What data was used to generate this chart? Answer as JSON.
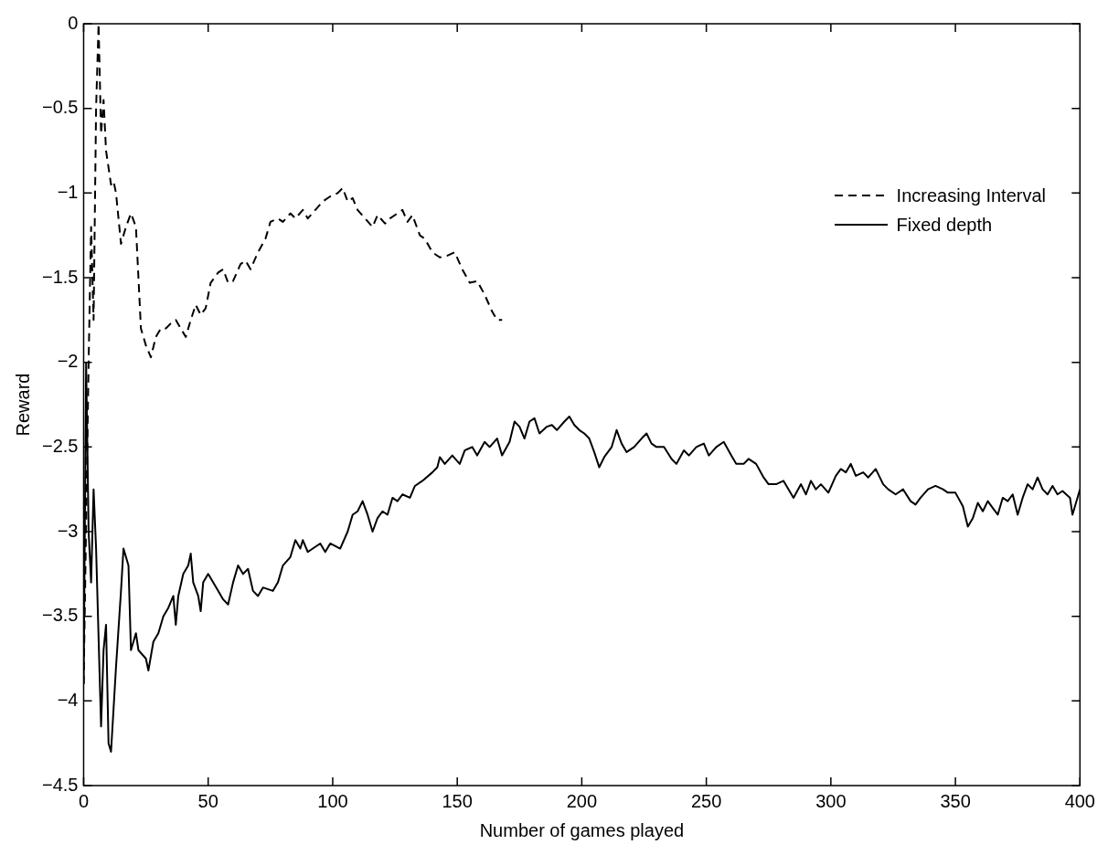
{
  "chart_data": {
    "type": "line",
    "xlabel": "Number of games played",
    "ylabel": "Reward",
    "xlim": [
      0,
      400
    ],
    "xticks": [
      0,
      50,
      100,
      150,
      200,
      250,
      300,
      350,
      400
    ],
    "ylim": [
      -4.5,
      0
    ],
    "yticks": [
      -4.5,
      -4,
      -3.5,
      -3,
      -2.5,
      -2,
      -1.5,
      -1,
      -0.5,
      0
    ],
    "grid": false,
    "legend": "top right",
    "marker": "none",
    "series": [
      {
        "name": "Increasing Interval",
        "color": "#000000",
        "line_style": "dashed",
        "x": [
          0,
          2,
          3,
          4,
          5,
          6,
          7,
          8,
          9,
          11,
          12,
          13,
          15,
          17,
          19,
          21,
          23,
          25,
          27,
          29,
          31,
          33,
          35,
          37,
          39,
          41,
          43,
          45,
          47,
          49,
          51,
          54,
          56,
          58,
          60,
          63,
          65,
          67,
          70,
          73,
          75,
          78,
          80,
          83,
          85,
          88,
          90,
          93,
          96,
          99,
          102,
          104,
          106,
          108,
          110,
          113,
          116,
          118,
          121,
          123,
          126,
          128,
          130,
          132,
          135,
          137,
          140,
          143,
          146,
          149,
          152,
          155,
          158,
          161,
          164,
          166,
          168
        ],
        "values": [
          -3.9,
          -2,
          -1.2,
          -1.75,
          -0.5,
          0,
          -0.65,
          -0.45,
          -0.75,
          -0.95,
          -0.93,
          -1,
          -1.3,
          -1.2,
          -1.12,
          -1.2,
          -1.8,
          -1.9,
          -1.97,
          -1.85,
          -1.8,
          -1.8,
          -1.77,
          -1.75,
          -1.8,
          -1.85,
          -1.75,
          -1.66,
          -1.72,
          -1.68,
          -1.53,
          -1.47,
          -1.45,
          -1.53,
          -1.52,
          -1.42,
          -1.4,
          -1.45,
          -1.35,
          -1.27,
          -1.17,
          -1.15,
          -1.17,
          -1.12,
          -1.15,
          -1.1,
          -1.15,
          -1.1,
          -1.05,
          -1.02,
          -1,
          -0.97,
          -1.05,
          -1.03,
          -1.1,
          -1.15,
          -1.2,
          -1.13,
          -1.18,
          -1.15,
          -1.12,
          -1.1,
          -1.17,
          -1.13,
          -1.25,
          -1.27,
          -1.35,
          -1.38,
          -1.37,
          -1.35,
          -1.45,
          -1.53,
          -1.52,
          -1.6,
          -1.7,
          -1.75,
          -1.75
        ]
      },
      {
        "name": "Fixed depth",
        "color": "#000000",
        "line_style": "solid",
        "x": [
          0,
          1,
          2,
          3,
          4,
          5,
          7,
          8,
          9,
          10,
          11,
          13,
          15,
          16,
          18,
          19,
          21,
          22,
          25,
          26,
          28,
          30,
          32,
          34,
          36,
          37,
          38,
          40,
          42,
          43,
          44,
          46,
          47,
          48,
          50,
          52,
          54,
          56,
          58,
          60,
          62,
          64,
          66,
          68,
          70,
          72,
          76,
          78,
          80,
          83,
          85,
          87,
          88,
          90,
          92,
          95,
          97,
          99,
          103,
          106,
          108,
          110,
          112,
          114,
          116,
          118,
          120,
          122,
          124,
          126,
          128,
          131,
          133,
          136,
          140,
          142,
          143,
          145,
          148,
          151,
          153,
          156,
          158,
          161,
          163,
          166,
          168,
          171,
          173,
          175,
          177,
          179,
          181,
          183,
          186,
          188,
          190,
          193,
          195,
          197,
          199,
          201,
          203,
          205,
          207,
          209,
          212,
          214,
          216,
          218,
          221,
          224,
          226,
          228,
          230,
          233,
          236,
          238,
          241,
          243,
          246,
          249,
          251,
          254,
          257,
          260,
          262,
          265,
          267,
          270,
          273,
          275,
          278,
          281,
          283,
          285,
          288,
          290,
          292,
          294,
          296,
          299,
          302,
          304,
          306,
          308,
          310,
          313,
          315,
          318,
          321,
          323,
          326,
          329,
          332,
          334,
          336,
          339,
          342,
          345,
          347,
          350,
          353,
          355,
          357,
          359,
          361,
          363,
          365,
          367,
          369,
          371,
          373,
          375,
          377,
          379,
          381,
          383,
          385,
          387,
          389,
          391,
          393,
          396,
          397,
          398,
          400
        ],
        "values": [
          -3.9,
          -2,
          -3,
          -3.3,
          -2.75,
          -3.1,
          -4.15,
          -3.7,
          -3.55,
          -4.25,
          -4.3,
          -3.8,
          -3.35,
          -3.1,
          -3.2,
          -3.7,
          -3.6,
          -3.7,
          -3.75,
          -3.82,
          -3.65,
          -3.6,
          -3.5,
          -3.45,
          -3.38,
          -3.55,
          -3.38,
          -3.25,
          -3.2,
          -3.13,
          -3.3,
          -3.38,
          -3.47,
          -3.3,
          -3.25,
          -3.3,
          -3.35,
          -3.4,
          -3.43,
          -3.3,
          -3.2,
          -3.25,
          -3.22,
          -3.35,
          -3.38,
          -3.33,
          -3.35,
          -3.3,
          -3.2,
          -3.15,
          -3.05,
          -3.1,
          -3.05,
          -3.12,
          -3.1,
          -3.07,
          -3.12,
          -3.07,
          -3.1,
          -3,
          -2.9,
          -2.88,
          -2.82,
          -2.9,
          -3,
          -2.92,
          -2.88,
          -2.9,
          -2.8,
          -2.82,
          -2.78,
          -2.8,
          -2.73,
          -2.7,
          -2.65,
          -2.62,
          -2.56,
          -2.6,
          -2.55,
          -2.6,
          -2.52,
          -2.5,
          -2.55,
          -2.47,
          -2.5,
          -2.45,
          -2.55,
          -2.47,
          -2.35,
          -2.38,
          -2.45,
          -2.35,
          -2.33,
          -2.42,
          -2.38,
          -2.37,
          -2.4,
          -2.35,
          -2.32,
          -2.37,
          -2.4,
          -2.42,
          -2.45,
          -2.53,
          -2.62,
          -2.56,
          -2.5,
          -2.4,
          -2.48,
          -2.53,
          -2.5,
          -2.45,
          -2.42,
          -2.48,
          -2.5,
          -2.5,
          -2.57,
          -2.6,
          -2.52,
          -2.55,
          -2.5,
          -2.48,
          -2.55,
          -2.5,
          -2.47,
          -2.55,
          -2.6,
          -2.6,
          -2.57,
          -2.6,
          -2.68,
          -2.72,
          -2.72,
          -2.7,
          -2.75,
          -2.8,
          -2.72,
          -2.78,
          -2.7,
          -2.75,
          -2.72,
          -2.77,
          -2.67,
          -2.63,
          -2.65,
          -2.6,
          -2.67,
          -2.65,
          -2.68,
          -2.63,
          -2.72,
          -2.75,
          -2.78,
          -2.75,
          -2.82,
          -2.84,
          -2.8,
          -2.75,
          -2.73,
          -2.75,
          -2.77,
          -2.77,
          -2.85,
          -2.97,
          -2.92,
          -2.83,
          -2.88,
          -2.82,
          -2.86,
          -2.9,
          -2.8,
          -2.82,
          -2.78,
          -2.9,
          -2.8,
          -2.72,
          -2.75,
          -2.68,
          -2.75,
          -2.78,
          -2.73,
          -2.78,
          -2.76,
          -2.8,
          -2.9,
          -2.85,
          -2.75
        ]
      }
    ]
  }
}
